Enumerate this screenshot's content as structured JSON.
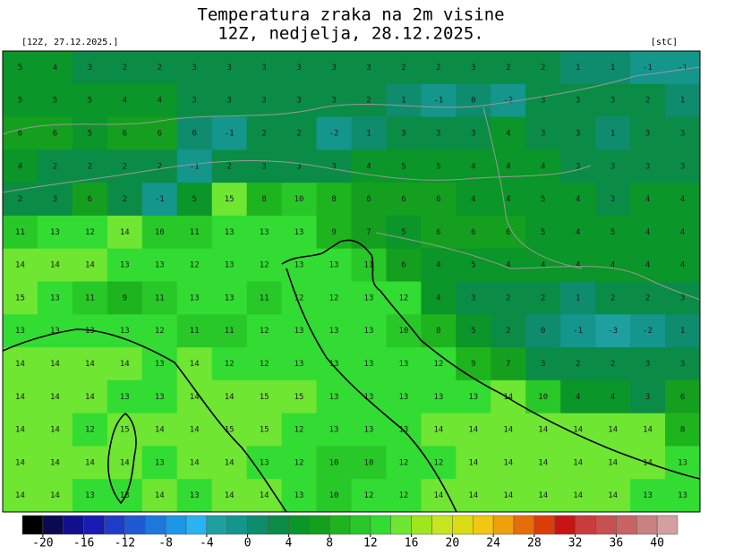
{
  "header": {
    "title": "Temperatura zraka na 2m visine",
    "subtitle": "12Z, nedjelja, 28.12.2025.",
    "run_label": "[12Z, 27.12.2025.]",
    "unit_label": "[stC]"
  },
  "grid": {
    "rows": [
      [
        5,
        4,
        3,
        2,
        2,
        3,
        3,
        3,
        3,
        3,
        3,
        2,
        2,
        3,
        2,
        2,
        1,
        1,
        -1,
        -1
      ],
      [
        5,
        5,
        5,
        4,
        4,
        3,
        3,
        3,
        3,
        3,
        2,
        1,
        -1,
        0,
        -2,
        3,
        3,
        3,
        2,
        1
      ],
      [
        6,
        6,
        5,
        6,
        6,
        0,
        -1,
        2,
        2,
        -2,
        1,
        3,
        3,
        3,
        4,
        3,
        3,
        1,
        3,
        3
      ],
      [
        4,
        2,
        2,
        2,
        2,
        -1,
        2,
        3,
        3,
        3,
        4,
        5,
        5,
        4,
        4,
        4,
        3,
        3,
        3,
        3
      ],
      [
        2,
        3,
        6,
        2,
        -1,
        5,
        15,
        8,
        10,
        8,
        6,
        6,
        6,
        4,
        4,
        5,
        4,
        3,
        4,
        4
      ],
      [
        11,
        13,
        12,
        14,
        10,
        11,
        13,
        13,
        13,
        9,
        7,
        5,
        6,
        6,
        6,
        5,
        4,
        5,
        4,
        4
      ],
      [
        14,
        14,
        14,
        13,
        13,
        12,
        13,
        12,
        13,
        13,
        11,
        6,
        4,
        5,
        4,
        4,
        4,
        4,
        4,
        4
      ],
      [
        15,
        13,
        11,
        9,
        11,
        13,
        13,
        11,
        12,
        12,
        13,
        12,
        4,
        3,
        2,
        2,
        1,
        2,
        2,
        3
      ],
      [
        13,
        13,
        13,
        13,
        12,
        11,
        11,
        12,
        13,
        13,
        13,
        10,
        8,
        5,
        2,
        0,
        -1,
        -3,
        -2,
        1
      ],
      [
        14,
        14,
        14,
        14,
        13,
        14,
        12,
        12,
        13,
        13,
        13,
        13,
        12,
        9,
        7,
        3,
        2,
        2,
        3,
        3
      ],
      [
        14,
        14,
        14,
        13,
        13,
        14,
        14,
        15,
        15,
        13,
        13,
        13,
        13,
        13,
        14,
        10,
        4,
        4,
        3,
        6
      ],
      [
        14,
        14,
        12,
        15,
        14,
        14,
        15,
        15,
        12,
        13,
        13,
        13,
        14,
        14,
        14,
        14,
        14,
        14,
        14,
        8
      ],
      [
        14,
        14,
        14,
        14,
        13,
        14,
        14,
        13,
        12,
        10,
        10,
        12,
        12,
        14,
        14,
        14,
        14,
        14,
        14,
        13
      ],
      [
        14,
        14,
        13,
        13,
        14,
        13,
        14,
        14,
        13,
        10,
        12,
        12,
        14,
        14,
        14,
        14,
        14,
        14,
        13,
        13
      ]
    ]
  },
  "colorbar": {
    "levels": [
      -20,
      -18,
      -16,
      -14,
      -12,
      -10,
      -8,
      -6,
      -4,
      -2,
      0,
      2,
      4,
      6,
      8,
      10,
      12,
      14,
      16,
      18,
      20,
      22,
      24,
      26,
      28,
      30,
      32,
      34,
      36,
      38,
      40
    ],
    "colors": [
      "#000000",
      "#0a0a50",
      "#10108c",
      "#1a1ab4",
      "#1e3cc8",
      "#1e5ad2",
      "#1e78dc",
      "#1e96e6",
      "#28b4f0",
      "#1ea0a0",
      "#14968c",
      "#0f8c6e",
      "#0a8c46",
      "#0a9628",
      "#14a01e",
      "#1eb41e",
      "#28c828",
      "#32dc32",
      "#6ee632",
      "#a0e61e",
      "#c8e61e",
      "#dcdc14",
      "#f0c814",
      "#f0a00a",
      "#e66e0a",
      "#dc3c0a",
      "#c81414",
      "#c83c3c",
      "#c85050",
      "#c86464",
      "#c88282",
      "#d2a0a0"
    ],
    "ticks": [
      -20,
      -16,
      -12,
      -8,
      -4,
      0,
      4,
      8,
      12,
      16,
      20,
      24,
      28,
      32,
      36,
      40
    ]
  }
}
